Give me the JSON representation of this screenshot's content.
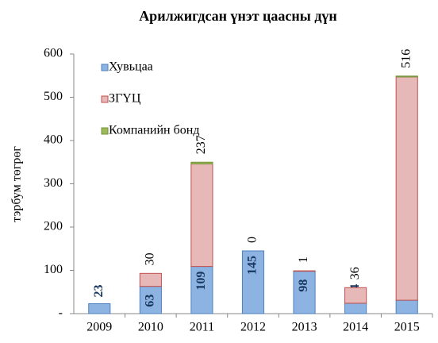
{
  "chart_data": {
    "type": "stacked_bar",
    "title": "Арилжигдсан үнэт цаасны дүн",
    "y_label": "тэрбум төгрөг",
    "categories": [
      "2009",
      "2010",
      "2011",
      "2012",
      "2013",
      "2014",
      "2015"
    ],
    "series": [
      {
        "name": "Хувьцаа",
        "color": "#8db3e2",
        "values": [
          23,
          63,
          109,
          145,
          98,
          24,
          31
        ]
      },
      {
        "name": "ЗГҮЦ",
        "color": "#e6b9b8",
        "values": [
          null,
          30,
          237,
          0,
          1,
          36,
          516
        ]
      },
      {
        "name": "Компанийн бонд",
        "color": "#9bbb59",
        "values": [
          null,
          null,
          4,
          null,
          null,
          null,
          2
        ]
      }
    ],
    "ylim": [
      0,
      600
    ],
    "yticks": [
      {
        "value": 0,
        "label": "-"
      },
      100,
      200,
      300,
      400,
      500,
      600
    ],
    "legend": "top-left"
  }
}
